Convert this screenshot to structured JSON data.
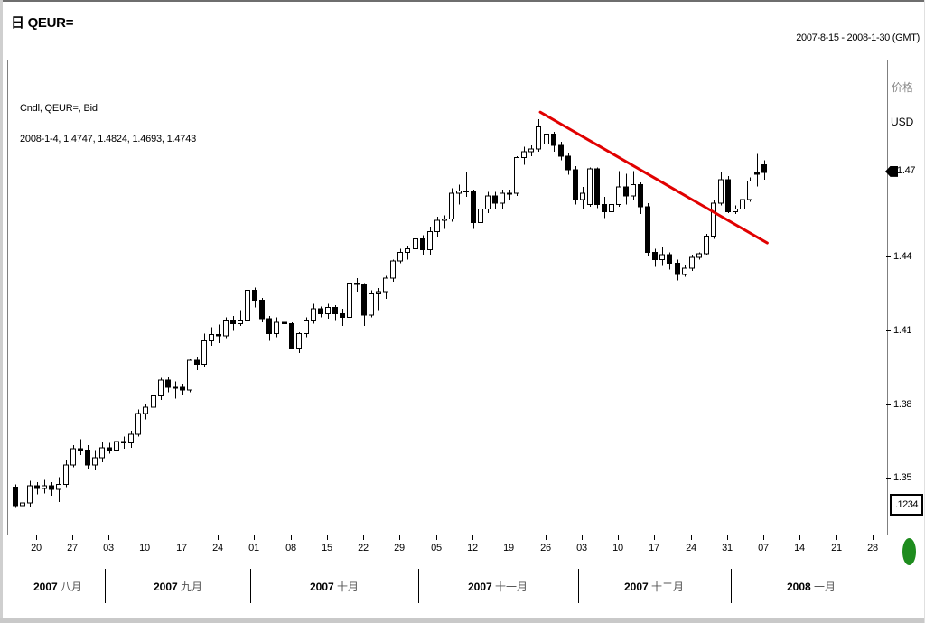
{
  "window": {
    "title": "日 QEUR=",
    "date_range": "2007-8-15 - 2008-1-30 (GMT)"
  },
  "legend": {
    "line1": "Cndl, QEUR=, Bid",
    "line2": "2008-1-4, 1.4747, 1.4824, 1.4693, 1.4743"
  },
  "right_axis": {
    "label_cn": "价格",
    "currency": "USD",
    "price_marker": {
      "label": "1.47",
      "price": 1.475
    },
    "decimal_box": ".1234"
  },
  "colors": {
    "trendline": "#e10000",
    "candle": "#000000",
    "status_dot": "#1e8c1e"
  },
  "chart_data": {
    "type": "candlestick",
    "symbol": "QEUR=",
    "field": "Bid",
    "interval": "daily",
    "title": "日 QEUR=",
    "ylabel": "价格 USD",
    "ylim": [
      1.3277,
      1.5205
    ],
    "x_step": 8.055,
    "y_ticks": [
      {
        "price": 1.44,
        "label": "1.44"
      },
      {
        "price": 1.41,
        "label": "1.41"
      },
      {
        "price": 1.38,
        "label": "1.38"
      },
      {
        "price": 1.35,
        "label": "1.35"
      }
    ],
    "x_ticks": [
      {
        "label": "20",
        "index": 3
      },
      {
        "label": "27",
        "index": 8
      },
      {
        "label": "03",
        "index": 13
      },
      {
        "label": "10",
        "index": 18
      },
      {
        "label": "17",
        "index": 23
      },
      {
        "label": "24",
        "index": 28
      },
      {
        "label": "01",
        "index": 33
      },
      {
        "label": "08",
        "index": 38
      },
      {
        "label": "15",
        "index": 43
      },
      {
        "label": "22",
        "index": 48
      },
      {
        "label": "29",
        "index": 53
      },
      {
        "label": "05",
        "index": 58
      },
      {
        "label": "12",
        "index": 63
      },
      {
        "label": "19",
        "index": 68
      },
      {
        "label": "26",
        "index": 73
      },
      {
        "label": "03",
        "index": 78
      },
      {
        "label": "10",
        "index": 83
      },
      {
        "label": "17",
        "index": 88
      },
      {
        "label": "24",
        "index": 93
      },
      {
        "label": "31",
        "index": 98
      },
      {
        "label": "07",
        "index": 103
      },
      {
        "label": "14",
        "index": 108
      },
      {
        "label": "21",
        "index": 113
      },
      {
        "label": "28",
        "index": 118
      }
    ],
    "months": [
      {
        "year": "2007",
        "name": "八月",
        "from": -0.5,
        "to": 12.5
      },
      {
        "year": "2007",
        "name": "九月",
        "from": 12.5,
        "to": 32.5
      },
      {
        "year": "2007",
        "name": "十月",
        "from": 32.5,
        "to": 55.5
      },
      {
        "year": "2007",
        "name": "十一月",
        "from": 55.5,
        "to": 77.5
      },
      {
        "year": "2007",
        "name": "十二月",
        "from": 77.5,
        "to": 98.5
      },
      {
        "year": "2008",
        "name": "一月",
        "from": 98.5,
        "to": 120.5
      }
    ],
    "trendline": {
      "x1_index": 72.2,
      "price1": 1.4995,
      "x2_index": 103.4,
      "price2": 1.4463
    },
    "candles_dohlc": [
      [
        "2007-08-15",
        1.347,
        1.348,
        1.3385,
        1.3395
      ],
      [
        "2007-08-16",
        1.3395,
        1.3465,
        1.336,
        1.3405
      ],
      [
        "2007-08-17",
        1.3405,
        1.3495,
        1.339,
        1.3475
      ],
      [
        "2007-08-20",
        1.3475,
        1.349,
        1.344,
        1.3465
      ],
      [
        "2007-08-21",
        1.3465,
        1.35,
        1.3445,
        1.3475
      ],
      [
        "2007-08-22",
        1.3475,
        1.349,
        1.3435,
        1.346
      ],
      [
        "2007-08-23",
        1.346,
        1.351,
        1.341,
        1.348
      ],
      [
        "2007-08-24",
        1.348,
        1.358,
        1.347,
        1.356
      ],
      [
        "2007-08-27",
        1.356,
        1.364,
        1.355,
        1.3625
      ],
      [
        "2007-08-28",
        1.3625,
        1.3665,
        1.36,
        1.362
      ],
      [
        "2007-08-29",
        1.362,
        1.364,
        1.3545,
        1.356
      ],
      [
        "2007-08-30",
        1.356,
        1.362,
        1.354,
        1.359
      ],
      [
        "2007-08-31",
        1.359,
        1.3655,
        1.357,
        1.363
      ],
      [
        "2007-09-03",
        1.363,
        1.365,
        1.3605,
        1.362
      ],
      [
        "2007-09-04",
        1.362,
        1.367,
        1.36,
        1.3655
      ],
      [
        "2007-09-05",
        1.3655,
        1.3675,
        1.3625,
        1.365
      ],
      [
        "2007-09-06",
        1.365,
        1.37,
        1.363,
        1.3685
      ],
      [
        "2007-09-07",
        1.3685,
        1.3785,
        1.3675,
        1.377
      ],
      [
        "2007-09-10",
        1.377,
        1.381,
        1.3745,
        1.3795
      ],
      [
        "2007-09-11",
        1.3795,
        1.3855,
        1.3785,
        1.384
      ],
      [
        "2007-09-12",
        1.384,
        1.3915,
        1.3825,
        1.3905
      ],
      [
        "2007-09-13",
        1.3905,
        1.392,
        1.3855,
        1.3875
      ],
      [
        "2007-09-14",
        1.3875,
        1.39,
        1.383,
        1.3875
      ],
      [
        "2007-09-17",
        1.3875,
        1.389,
        1.3845,
        1.3865
      ],
      [
        "2007-09-18",
        1.3865,
        1.399,
        1.3855,
        1.3985
      ],
      [
        "2007-09-19",
        1.3985,
        1.4,
        1.3945,
        1.397
      ],
      [
        "2007-09-20",
        1.397,
        1.4095,
        1.396,
        1.4065
      ],
      [
        "2007-09-21",
        1.4065,
        1.412,
        1.4045,
        1.409
      ],
      [
        "2007-09-24",
        1.409,
        1.413,
        1.4055,
        1.4085
      ],
      [
        "2007-09-25",
        1.4085,
        1.416,
        1.4075,
        1.415
      ],
      [
        "2007-09-26",
        1.415,
        1.4165,
        1.4105,
        1.4135
      ],
      [
        "2007-09-27",
        1.4135,
        1.419,
        1.4125,
        1.415
      ],
      [
        "2007-09-28",
        1.415,
        1.428,
        1.414,
        1.427
      ],
      [
        "2007-10-01",
        1.427,
        1.4282,
        1.42,
        1.423
      ],
      [
        "2007-10-02",
        1.423,
        1.424,
        1.414,
        1.4155
      ],
      [
        "2007-10-03",
        1.4155,
        1.4165,
        1.4065,
        1.4095
      ],
      [
        "2007-10-04",
        1.4095,
        1.416,
        1.408,
        1.414
      ],
      [
        "2007-10-05",
        1.414,
        1.4155,
        1.4095,
        1.4135
      ],
      [
        "2007-10-08",
        1.4135,
        1.414,
        1.403,
        1.4035
      ],
      [
        "2007-10-09",
        1.4035,
        1.41,
        1.4015,
        1.4095
      ],
      [
        "2007-10-10",
        1.4095,
        1.416,
        1.408,
        1.415
      ],
      [
        "2007-10-11",
        1.415,
        1.4215,
        1.4135,
        1.4195
      ],
      [
        "2007-10-12",
        1.4195,
        1.4205,
        1.416,
        1.4175
      ],
      [
        "2007-10-15",
        1.4175,
        1.4215,
        1.4155,
        1.42
      ],
      [
        "2007-10-16",
        1.42,
        1.421,
        1.415,
        1.4175
      ],
      [
        "2007-10-17",
        1.4175,
        1.4195,
        1.4125,
        1.416
      ],
      [
        "2007-10-18",
        1.416,
        1.431,
        1.415,
        1.43
      ],
      [
        "2007-10-19",
        1.43,
        1.432,
        1.4265,
        1.4295
      ],
      [
        "2007-10-22",
        1.4295,
        1.43,
        1.4125,
        1.417
      ],
      [
        "2007-10-23",
        1.417,
        1.427,
        1.416,
        1.4255
      ],
      [
        "2007-10-24",
        1.4255,
        1.428,
        1.419,
        1.4265
      ],
      [
        "2007-10-25",
        1.4265,
        1.433,
        1.4235,
        1.432
      ],
      [
        "2007-10-26",
        1.432,
        1.4395,
        1.4305,
        1.439
      ],
      [
        "2007-10-29",
        1.439,
        1.444,
        1.438,
        1.4425
      ],
      [
        "2007-10-30",
        1.4425,
        1.445,
        1.4395,
        1.444
      ],
      [
        "2007-10-31",
        1.444,
        1.4505,
        1.44,
        1.448
      ],
      [
        "2007-11-01",
        1.448,
        1.4495,
        1.4415,
        1.4435
      ],
      [
        "2007-11-02",
        1.4435,
        1.453,
        1.4415,
        1.451
      ],
      [
        "2007-11-05",
        1.451,
        1.457,
        1.4485,
        1.4555
      ],
      [
        "2007-11-06",
        1.4555,
        1.4575,
        1.452,
        1.456
      ],
      [
        "2007-11-07",
        1.456,
        1.4685,
        1.455,
        1.4665
      ],
      [
        "2007-11-08",
        1.4665,
        1.47,
        1.462,
        1.4675
      ],
      [
        "2007-11-09",
        1.4675,
        1.475,
        1.465,
        1.4675
      ],
      [
        "2007-11-12",
        1.4675,
        1.468,
        1.452,
        1.4545
      ],
      [
        "2007-11-13",
        1.4545,
        1.462,
        1.4525,
        1.46
      ],
      [
        "2007-11-14",
        1.46,
        1.467,
        1.4585,
        1.4655
      ],
      [
        "2007-11-15",
        1.4655,
        1.467,
        1.46,
        1.4625
      ],
      [
        "2007-11-16",
        1.4625,
        1.468,
        1.46,
        1.4665
      ],
      [
        "2007-11-19",
        1.4665,
        1.468,
        1.4635,
        1.4665
      ],
      [
        "2007-11-20",
        1.4665,
        1.4815,
        1.4655,
        1.481
      ],
      [
        "2007-11-21",
        1.481,
        1.4855,
        1.478,
        1.4835
      ],
      [
        "2007-11-22",
        1.4835,
        1.486,
        1.4815,
        1.4845
      ],
      [
        "2007-11-23",
        1.4845,
        1.4967,
        1.4835,
        1.4935
      ],
      [
        "2007-11-26",
        1.4865,
        1.494,
        1.4855,
        1.4905
      ],
      [
        "2007-11-27",
        1.4905,
        1.4915,
        1.4835,
        1.486
      ],
      [
        "2007-11-28",
        1.486,
        1.4875,
        1.48,
        1.4815
      ],
      [
        "2007-11-29",
        1.4815,
        1.483,
        1.474,
        1.476
      ],
      [
        "2007-11-30",
        1.476,
        1.4775,
        1.462,
        1.464
      ],
      [
        "2007-12-03",
        1.464,
        1.469,
        1.46,
        1.4665
      ],
      [
        "2007-12-04",
        1.462,
        1.477,
        1.461,
        1.4765
      ],
      [
        "2007-12-05",
        1.4765,
        1.477,
        1.4605,
        1.462
      ],
      [
        "2007-12-06",
        1.462,
        1.465,
        1.4565,
        1.459
      ],
      [
        "2007-12-07",
        1.459,
        1.465,
        1.457,
        1.462
      ],
      [
        "2007-12-10",
        1.462,
        1.4755,
        1.461,
        1.469
      ],
      [
        "2007-12-11",
        1.469,
        1.4745,
        1.462,
        1.4655
      ],
      [
        "2007-12-12",
        1.4655,
        1.4755,
        1.4635,
        1.47
      ],
      [
        "2007-12-13",
        1.47,
        1.471,
        1.458,
        1.461
      ],
      [
        "2007-12-14",
        1.461,
        1.4625,
        1.441,
        1.4425
      ],
      [
        "2007-12-17",
        1.4425,
        1.444,
        1.4365,
        1.4395
      ],
      [
        "2007-12-18",
        1.4395,
        1.4445,
        1.437,
        1.4415
      ],
      [
        "2007-12-19",
        1.4415,
        1.4425,
        1.4355,
        1.438
      ],
      [
        "2007-12-20",
        1.438,
        1.4395,
        1.431,
        1.4335
      ],
      [
        "2007-12-21",
        1.4335,
        1.4375,
        1.4325,
        1.436
      ],
      [
        "2007-12-24",
        1.436,
        1.4415,
        1.435,
        1.4405
      ],
      [
        "2007-12-25",
        1.4405,
        1.4425,
        1.4395,
        1.442
      ],
      [
        "2007-12-26",
        1.442,
        1.45,
        1.4415,
        1.449
      ],
      [
        "2007-12-27",
        1.449,
        1.464,
        1.448,
        1.4625
      ],
      [
        "2007-12-28",
        1.4625,
        1.475,
        1.4615,
        1.472
      ],
      [
        "2007-12-31",
        1.472,
        1.4735,
        1.4585,
        1.459
      ],
      [
        "2008-01-01",
        1.459,
        1.4615,
        1.458,
        1.46
      ],
      [
        "2008-01-02",
        1.46,
        1.465,
        1.458,
        1.464
      ],
      [
        "2008-01-03",
        1.464,
        1.473,
        1.463,
        1.4715
      ],
      [
        "2008-01-04",
        1.4747,
        1.4824,
        1.4693,
        1.4743
      ],
      [
        "2008-01-07",
        1.478,
        1.48,
        1.472,
        1.475
      ]
    ]
  }
}
